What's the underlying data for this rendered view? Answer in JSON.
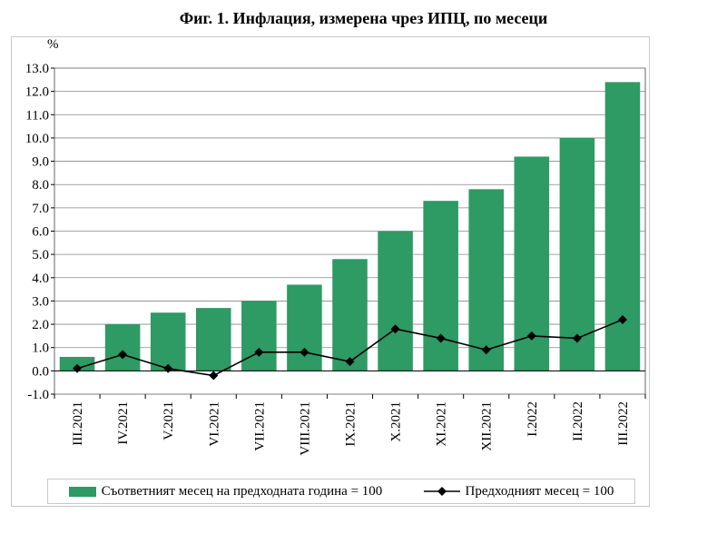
{
  "title": "Фиг. 1. Инфлация, измерена чрез ИПЦ, по месеци",
  "unit_label": "%",
  "colors": {
    "bar": "#2e9a64",
    "line": "#000000",
    "grid": "#888888"
  },
  "legend": {
    "bar_label": "Съответният месец на предходната година = 100",
    "line_label": "Предходният месец = 100",
    "placement": "bottom"
  },
  "chart_data": {
    "type": "bar",
    "title": "Фиг. 1. Инфлация, измерена чрез ИПЦ, по месеци",
    "ylabel": "%",
    "ylim": [
      -1.0,
      13.0
    ],
    "ytick_step": 1.0,
    "grid": true,
    "categories": [
      "III.2021",
      "IV.2021",
      "V.2021",
      "VI.2021",
      "VII.2021",
      "VIII.2021",
      "IX.2021",
      "X.2021",
      "XI.2021",
      "XII.2021",
      "I.2022",
      "II.2022",
      "III.2022"
    ],
    "series": [
      {
        "name": "Съответният месец на предходната година = 100",
        "type": "bar",
        "values": [
          0.6,
          2.0,
          2.5,
          2.7,
          3.0,
          3.7,
          4.8,
          6.0,
          7.3,
          7.8,
          9.2,
          10.0,
          12.4
        ]
      },
      {
        "name": "Предходният месец = 100",
        "type": "line",
        "values": [
          0.1,
          0.7,
          0.1,
          -0.2,
          0.8,
          0.8,
          0.4,
          1.8,
          1.4,
          0.9,
          1.5,
          1.4,
          2.2
        ]
      }
    ]
  }
}
